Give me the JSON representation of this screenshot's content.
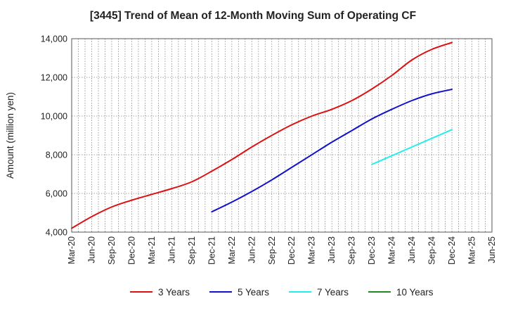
{
  "chart_data": {
    "type": "line",
    "title": "[3445]  Trend of Mean of 12-Month Moving Sum of Operating CF",
    "xlabel": "",
    "ylabel": "Amount (million yen)",
    "ylim": [
      4000,
      14000
    ],
    "yticks": [
      4000,
      6000,
      8000,
      10000,
      12000,
      14000
    ],
    "ytick_labels": [
      "4,000",
      "6,000",
      "8,000",
      "10,000",
      "12,000",
      "14,000"
    ],
    "x_start": "Mar-20",
    "x_end": "Jun-25",
    "x_step_months": 1,
    "xtick_labels": [
      "Mar-20",
      "Jun-20",
      "Sep-20",
      "Dec-20",
      "Mar-21",
      "Jun-21",
      "Sep-21",
      "Dec-21",
      "Mar-22",
      "Jun-22",
      "Sep-22",
      "Dec-22",
      "Mar-23",
      "Jun-23",
      "Sep-23",
      "Dec-23",
      "Mar-24",
      "Jun-24",
      "Sep-24",
      "Dec-24",
      "Mar-25",
      "Jun-25"
    ],
    "grid": true,
    "legend_position": "bottom",
    "series": [
      {
        "name": "3 Years",
        "color": "#dd1111",
        "points": [
          [
            "Mar-20",
            4200
          ],
          [
            "Jun-20",
            4800
          ],
          [
            "Sep-20",
            5300
          ],
          [
            "Dec-20",
            5650
          ],
          [
            "Mar-21",
            5950
          ],
          [
            "Jun-21",
            6250
          ],
          [
            "Sep-21",
            6600
          ],
          [
            "Dec-21",
            7150
          ],
          [
            "Mar-22",
            7750
          ],
          [
            "Jun-22",
            8400
          ],
          [
            "Sep-22",
            9000
          ],
          [
            "Dec-22",
            9550
          ],
          [
            "Mar-23",
            10000
          ],
          [
            "Jun-23",
            10350
          ],
          [
            "Sep-23",
            10800
          ],
          [
            "Dec-23",
            11400
          ],
          [
            "Mar-24",
            12100
          ],
          [
            "Jun-24",
            12900
          ],
          [
            "Sep-24",
            13450
          ],
          [
            "Dec-24",
            13800
          ]
        ]
      },
      {
        "name": "5 Years",
        "color": "#1111cc",
        "points": [
          [
            "Dec-21",
            5050
          ],
          [
            "Mar-22",
            5550
          ],
          [
            "Jun-22",
            6100
          ],
          [
            "Sep-22",
            6700
          ],
          [
            "Dec-22",
            7350
          ],
          [
            "Mar-23",
            8000
          ],
          [
            "Jun-23",
            8650
          ],
          [
            "Sep-23",
            9250
          ],
          [
            "Dec-23",
            9850
          ],
          [
            "Mar-24",
            10350
          ],
          [
            "Jun-24",
            10800
          ],
          [
            "Sep-24",
            11150
          ],
          [
            "Dec-24",
            11380
          ]
        ]
      },
      {
        "name": "7 Years",
        "color": "#22eeee",
        "points": [
          [
            "Dec-23",
            7500
          ],
          [
            "Mar-24",
            7950
          ],
          [
            "Jun-24",
            8400
          ],
          [
            "Sep-24",
            8850
          ],
          [
            "Dec-24",
            9300
          ]
        ]
      },
      {
        "name": "10 Years",
        "color": "#228822",
        "points": []
      }
    ]
  }
}
